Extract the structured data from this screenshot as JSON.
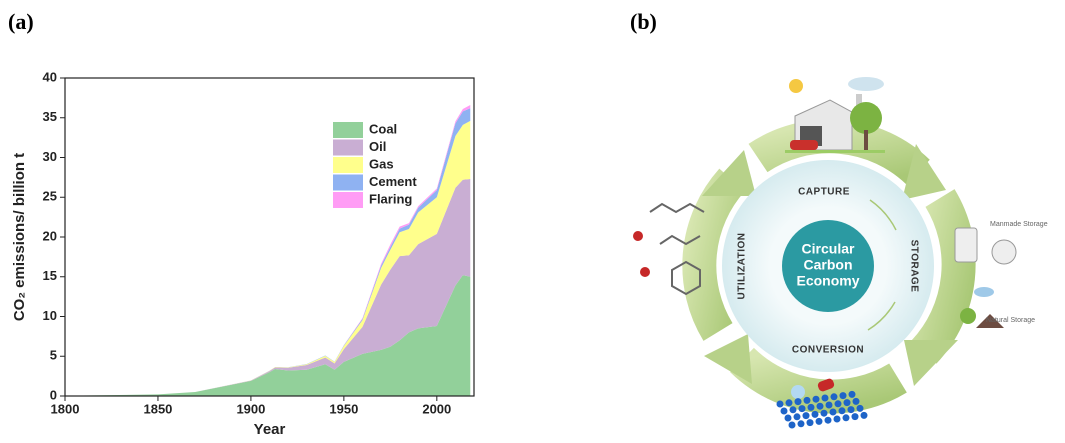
{
  "panel_labels": [
    "(a)",
    "(b)"
  ],
  "chart_data": {
    "type": "stacked-area",
    "x_label": "Year",
    "y_label": "CO₂ emissions/ billion t",
    "x": [
      1800,
      1850,
      1870,
      1900,
      1910,
      1913,
      1920,
      1930,
      1940,
      1945,
      1950,
      1960,
      1970,
      1975,
      1980,
      1985,
      1990,
      2000,
      2010,
      2014,
      2018
    ],
    "series": [
      {
        "name": "Coal",
        "color": "#92d09a",
        "values": [
          0.03,
          0.2,
          0.5,
          1.9,
          3.0,
          3.4,
          3.2,
          3.3,
          4.0,
          3.3,
          4.3,
          5.3,
          5.8,
          6.2,
          7.0,
          8.0,
          8.5,
          8.8,
          13.9,
          15.2,
          15.0
        ]
      },
      {
        "name": "Oil",
        "color": "#c9aed3",
        "values": [
          0,
          0,
          0,
          0.05,
          0.15,
          0.2,
          0.35,
          0.6,
          0.85,
          0.8,
          1.6,
          3.4,
          8.2,
          9.7,
          10.6,
          9.7,
          10.6,
          11.6,
          12.3,
          12.0,
          12.3
        ]
      },
      {
        "name": "Gas",
        "color": "#ffff8c",
        "values": [
          0,
          0,
          0,
          0.01,
          0.03,
          0.04,
          0.05,
          0.1,
          0.2,
          0.2,
          0.4,
          0.85,
          2.1,
          2.5,
          3.0,
          3.3,
          4.0,
          4.6,
          6.5,
          6.9,
          7.3
        ]
      },
      {
        "name": "Cement",
        "color": "#8fb2f2",
        "values": [
          0,
          0,
          0,
          0,
          0.01,
          0.01,
          0.02,
          0.03,
          0.04,
          0.03,
          0.08,
          0.15,
          0.3,
          0.35,
          0.45,
          0.55,
          0.6,
          0.9,
          1.6,
          1.7,
          1.6
        ]
      },
      {
        "name": "Flaring",
        "color": "#ff9cf5",
        "values": [
          0,
          0,
          0,
          0,
          0,
          0,
          0,
          0,
          0,
          0,
          0.02,
          0.1,
          0.2,
          0.3,
          0.25,
          0.2,
          0.18,
          0.2,
          0.25,
          0.3,
          0.4
        ]
      }
    ],
    "xlim": [
      1800,
      2020
    ],
    "xticks": [
      1800,
      1850,
      1900,
      1950,
      2000
    ],
    "ylim": [
      0,
      40
    ],
    "yticks": [
      0,
      5,
      10,
      15,
      20,
      25,
      30,
      35,
      40
    ],
    "legend": "upper right"
  },
  "diagram": {
    "center": [
      "Circular",
      "Carbon",
      "Economy"
    ],
    "stages": [
      "CAPTURE",
      "STORAGE",
      "CONVERSION",
      "UTILIZATION"
    ],
    "storage_labels": [
      "Manmade Storage",
      "Natural Storage"
    ]
  }
}
